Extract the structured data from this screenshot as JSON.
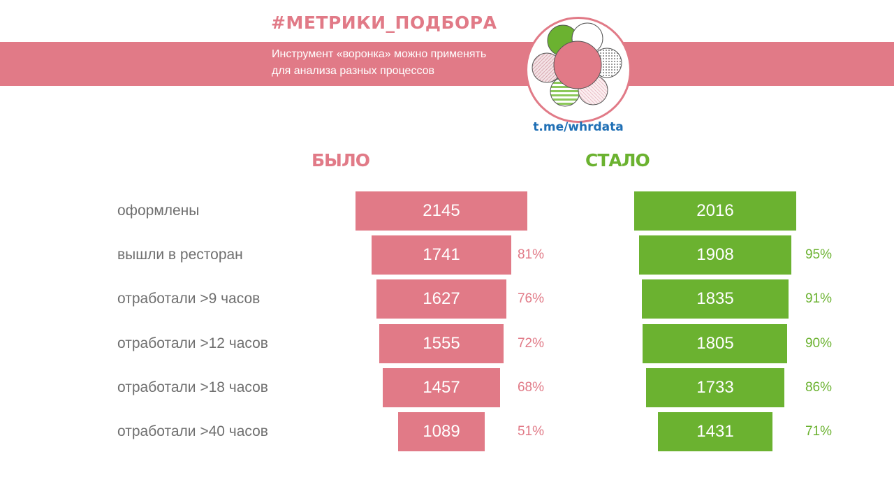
{
  "header": {
    "hashtag": "#МЕТРИКИ_ПОДБОРА",
    "subtitle_line1": "Инструмент «воронка» можно применять",
    "subtitle_line2": "для анализа разных процессов",
    "link": "t.me/whrdata"
  },
  "colors": {
    "pink": "#e17a87",
    "green": "#6bb230",
    "link_blue": "#1f6fb5",
    "label_gray": "#6f6f6f"
  },
  "chart_data": {
    "type": "bar",
    "subtype": "funnel",
    "categories": [
      "оформлены",
      "вышли в ресторан",
      "отработали >9 часов",
      "отработали >12 часов",
      "отработали >18 часов",
      "отработали >40 часов"
    ],
    "series": [
      {
        "name": "БЫЛО",
        "values": [
          2145,
          1741,
          1627,
          1555,
          1457,
          1089
        ],
        "percent_labels": [
          "",
          "81%",
          "76%",
          "72%",
          "68%",
          "51%"
        ]
      },
      {
        "name": "СТАЛО",
        "values": [
          2016,
          1908,
          1835,
          1805,
          1733,
          1431
        ],
        "percent_labels": [
          "",
          "95%",
          "91%",
          "90%",
          "86%",
          "71%"
        ]
      }
    ]
  }
}
